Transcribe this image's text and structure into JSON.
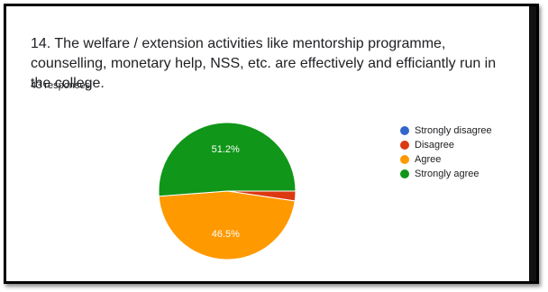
{
  "question": {
    "title": "14. The welfare / extension activities like mentorship programme, counselling, monetary help, NSS, etc. are effectively and efficiantly run in the college.",
    "responses": "43 responses"
  },
  "chart_data": {
    "type": "pie",
    "categories": [
      "Strongly disagree",
      "Disagree",
      "Agree",
      "Strongly agree"
    ],
    "values": [
      0,
      2.3,
      46.5,
      51.2
    ],
    "slice_labels": [
      "",
      "",
      "46.5%",
      "51.2%"
    ],
    "colors": [
      "#3366cc",
      "#dc3912",
      "#ff9900",
      "#109618"
    ],
    "legend_position": "right"
  }
}
